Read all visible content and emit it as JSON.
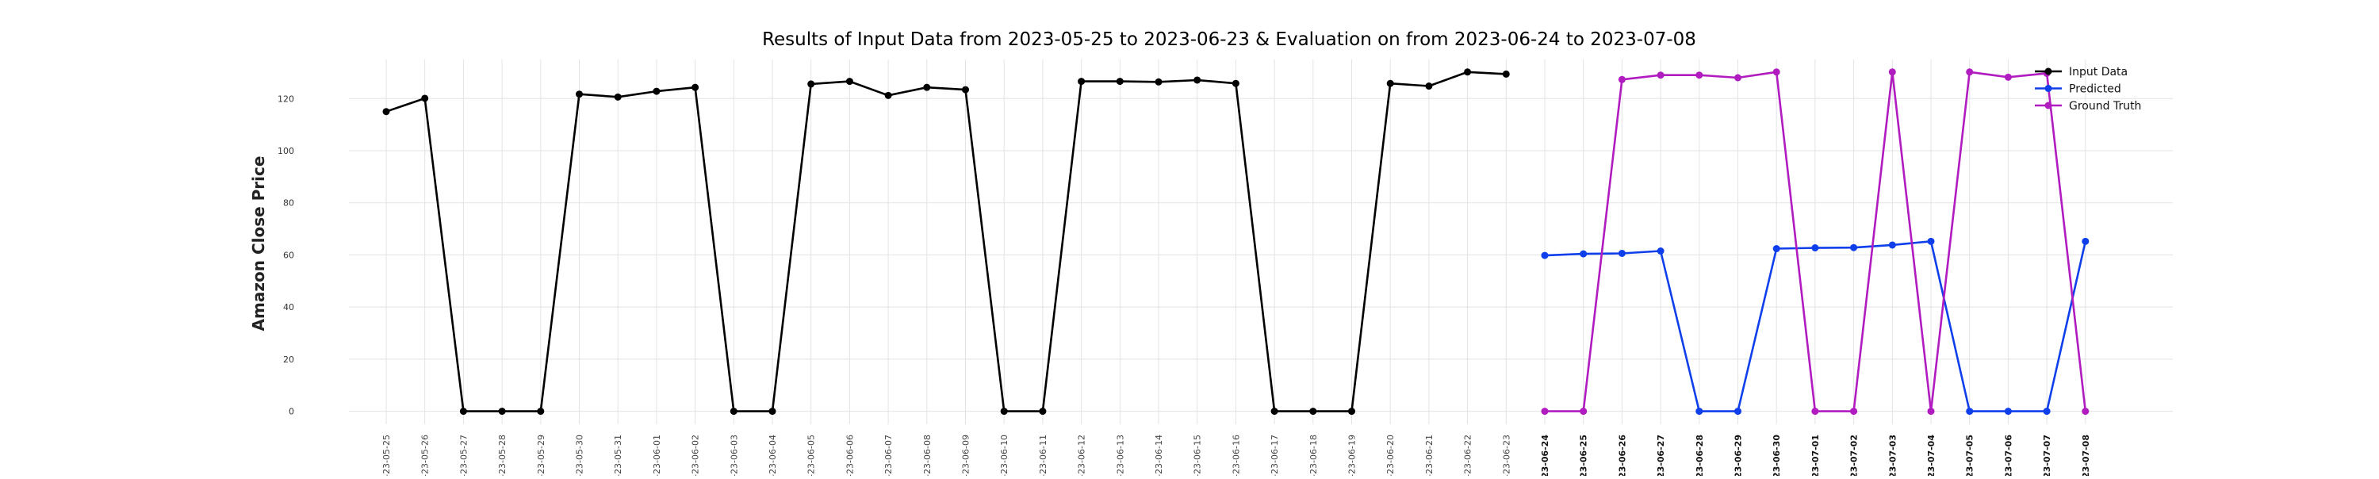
{
  "chart_data": {
    "type": "line",
    "title": "Results of Input Data from 2023-05-25 to 2023-06-23 & Evaluation on from 2023-06-24 to 2023-07-08",
    "xlabel": "",
    "ylabel": "Amazon Close Price",
    "ylim": [
      -5,
      135
    ],
    "yticks": [
      0,
      20,
      40,
      60,
      80,
      100,
      120
    ],
    "grid": true,
    "legend_position": "top-right",
    "x": [
      "2023-05-25",
      "2023-05-26",
      "2023-05-27",
      "2023-05-28",
      "2023-05-29",
      "2023-05-30",
      "2023-05-31",
      "2023-06-01",
      "2023-06-02",
      "2023-06-03",
      "2023-06-04",
      "2023-06-05",
      "2023-06-06",
      "2023-06-07",
      "2023-06-08",
      "2023-06-09",
      "2023-06-10",
      "2023-06-11",
      "2023-06-12",
      "2023-06-13",
      "2023-06-14",
      "2023-06-15",
      "2023-06-16",
      "2023-06-17",
      "2023-06-18",
      "2023-06-19",
      "2023-06-20",
      "2023-06-21",
      "2023-06-22",
      "2023-06-23",
      "2023-06-24",
      "2023-06-25",
      "2023-06-26",
      "2023-06-27",
      "2023-06-28",
      "2023-06-29",
      "2023-06-30",
      "2023-07-01",
      "2023-07-02",
      "2023-07-03",
      "2023-07-04",
      "2023-07-05",
      "2023-07-06",
      "2023-07-07",
      "2023-07-08"
    ],
    "tick_labels": [
      "-23-05-25",
      "-23-05-26",
      "-23-05-27",
      "-23-05-28",
      "-23-05-29",
      "-23-05-30",
      "-23-05-31",
      "-23-06-01",
      "-23-06-02",
      "-23-06-03",
      "-23-06-04",
      "-23-06-05",
      "-23-06-06",
      "-23-06-07",
      "-23-06-08",
      "-23-06-09",
      "-23-06-10",
      "-23-06-11",
      "-23-06-12",
      "-23-06-13",
      "-23-06-14",
      "-23-06-15",
      "-23-06-16",
      "-23-06-17",
      "-23-06-18",
      "-23-06-19",
      "-23-06-20",
      "-23-06-21",
      "-23-06-22",
      "-23-06-23",
      "-23-06-24",
      "-23-06-25",
      "-23-06-26",
      "-23-06-27",
      "-23-06-28",
      "-23-06-29",
      "-23-06-30",
      "-23-07-01",
      "-23-07-02",
      "-23-07-03",
      "-23-07-04",
      "-23-07-05",
      "-23-07-06",
      "-23-07-07",
      "-23-07-08"
    ],
    "series": [
      {
        "name": "Input Data",
        "color": "#000000",
        "x": [
          "2023-05-25",
          "2023-05-26",
          "2023-05-27",
          "2023-05-28",
          "2023-05-29",
          "2023-05-30",
          "2023-05-31",
          "2023-06-01",
          "2023-06-02",
          "2023-06-03",
          "2023-06-04",
          "2023-06-05",
          "2023-06-06",
          "2023-06-07",
          "2023-06-08",
          "2023-06-09",
          "2023-06-10",
          "2023-06-11",
          "2023-06-12",
          "2023-06-13",
          "2023-06-14",
          "2023-06-15",
          "2023-06-16",
          "2023-06-17",
          "2023-06-18",
          "2023-06-19",
          "2023-06-20",
          "2023-06-21",
          "2023-06-22",
          "2023-06-23"
        ],
        "values": [
          115.0,
          120.1,
          0,
          0,
          0,
          121.7,
          120.6,
          122.8,
          124.3,
          0,
          0,
          125.6,
          126.6,
          121.2,
          124.3,
          123.4,
          0,
          0,
          126.6,
          126.6,
          126.4,
          127.1,
          125.8,
          0,
          0,
          0,
          125.8,
          124.8,
          130.2,
          129.4
        ]
      },
      {
        "name": "Predicted",
        "color": "#0f3fea",
        "x": [
          "2023-06-24",
          "2023-06-25",
          "2023-06-26",
          "2023-06-27",
          "2023-06-28",
          "2023-06-29",
          "2023-06-30",
          "2023-07-01",
          "2023-07-02",
          "2023-07-03",
          "2023-07-04",
          "2023-07-05",
          "2023-07-06",
          "2023-07-07",
          "2023-07-08"
        ],
        "values": [
          59.8,
          60.4,
          60.6,
          61.5,
          0,
          0,
          62.4,
          62.7,
          62.8,
          63.8,
          65.2,
          0,
          0,
          0,
          65.2
        ]
      },
      {
        "name": "Ground Truth",
        "color": "#b01cbf",
        "x": [
          "2023-06-24",
          "2023-06-25",
          "2023-06-26",
          "2023-06-27",
          "2023-06-28",
          "2023-06-29",
          "2023-06-30",
          "2023-07-01",
          "2023-07-02",
          "2023-07-03",
          "2023-07-04",
          "2023-07-05",
          "2023-07-06",
          "2023-07-07",
          "2023-07-08"
        ],
        "values": [
          0,
          0,
          127.3,
          129.0,
          129.0,
          128.0,
          130.2,
          0,
          0,
          130.2,
          0,
          130.2,
          128.2,
          129.7,
          0
        ]
      }
    ]
  }
}
